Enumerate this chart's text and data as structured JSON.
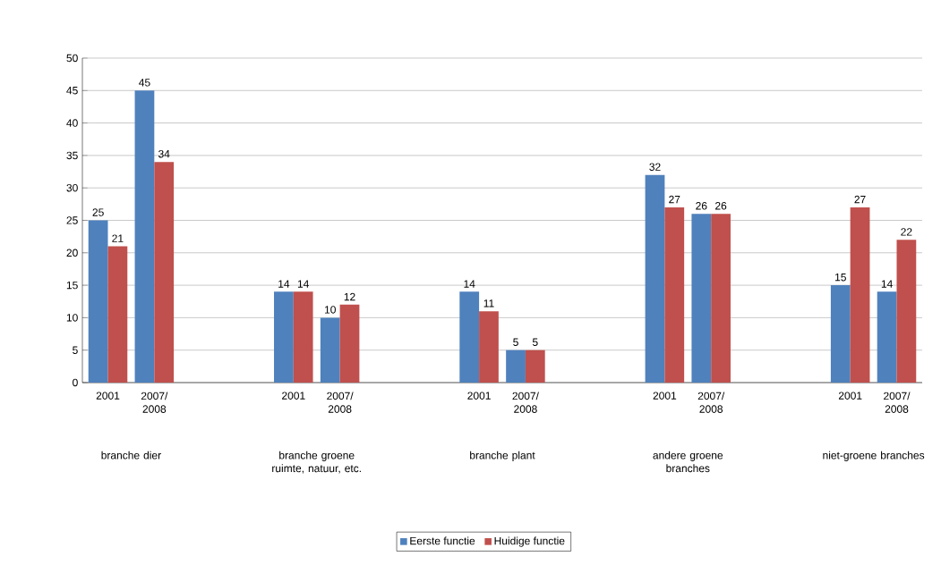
{
  "chart_data": {
    "type": "bar",
    "categories": [
      "2001",
      "2007/ 2008",
      null,
      null,
      "2001",
      "2007/ 2008",
      null,
      null,
      "2001",
      "2007/ 2008",
      null,
      null,
      "2001",
      "2007/ 2008",
      null,
      null,
      "2001",
      "2007/ 2008"
    ],
    "series": [
      {
        "name": "Eerste functie",
        "color": "#4f81bd",
        "values": [
          25,
          45,
          null,
          null,
          14,
          10,
          null,
          null,
          14,
          5,
          null,
          null,
          32,
          26,
          null,
          null,
          15,
          14
        ]
      },
      {
        "name": "Huidige functie",
        "color": "#c0504d",
        "values": [
          21,
          34,
          null,
          null,
          14,
          12,
          null,
          null,
          11,
          5,
          null,
          null,
          27,
          26,
          null,
          null,
          27,
          22
        ]
      }
    ],
    "annotations": [
      "branche dier",
      "branche groene ruimte, natuur, etc.",
      "branche plant",
      "andere groene branches",
      "niet-groene branches"
    ],
    "ylim": [
      0,
      50
    ],
    "yticks": [
      0,
      5,
      10,
      15,
      20,
      25,
      30,
      35,
      40,
      45,
      50
    ],
    "grid": "y",
    "legend": "bottom",
    "data_labels": true
  }
}
